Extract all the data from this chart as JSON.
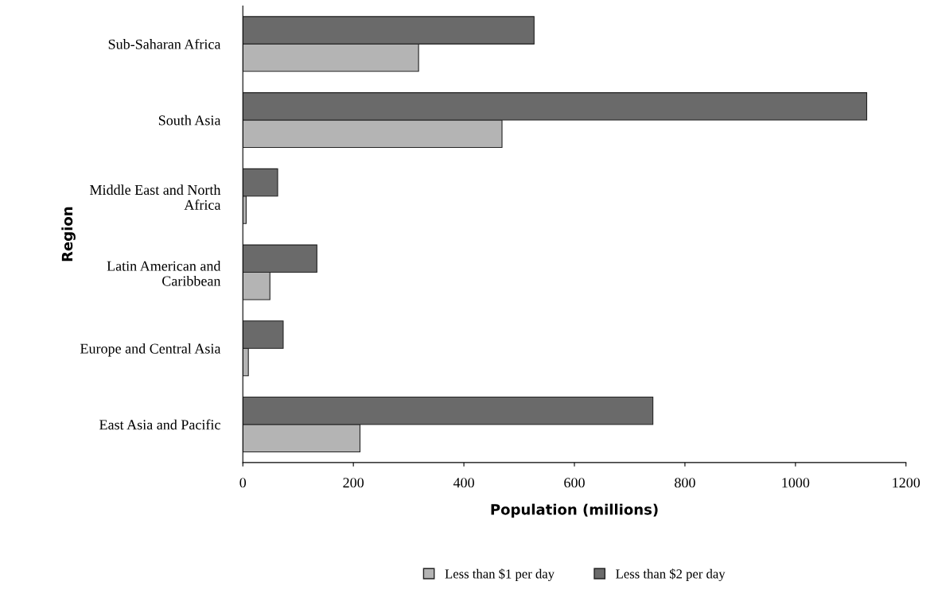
{
  "chart_data": {
    "type": "bar",
    "orientation": "horizontal",
    "xlabel": "Population (millions)",
    "ylabel": "Region",
    "categories": [
      "Sub-Saharan Africa",
      "South Asia",
      "Middle East and North\nAfrica",
      "Latin American and\nCaribbean",
      "Europe and Central Asia",
      "East Asia and Pacific"
    ],
    "series": [
      {
        "name": "Less than $1 per day",
        "color": "#b4b4b4",
        "values": [
          318,
          469,
          6,
          49,
          10,
          212
        ]
      },
      {
        "name": "Less than $2 per day",
        "color": "#6a6a6a",
        "values": [
          527,
          1129,
          63,
          134,
          73,
          742
        ]
      }
    ],
    "xlim": [
      0,
      1200
    ],
    "xticks": [
      0,
      200,
      400,
      600,
      800,
      1000,
      1200
    ],
    "grid": false,
    "legend": "bottom"
  }
}
